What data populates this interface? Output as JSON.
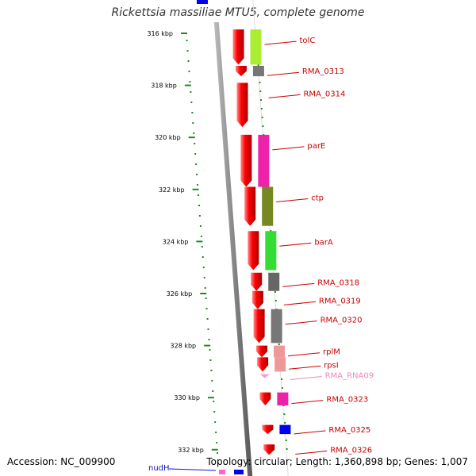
{
  "title": "Rickettsia massiliae MTU5, complete genome",
  "footer": {
    "accession": "Accession: NC_009900",
    "summary": "Topology: circular; Length: 1,360,898 bp; Genes: 1,007"
  },
  "colors": {
    "forward": "#ee0000",
    "backbone": "#888888",
    "tick": "#228822",
    "label": "#cc0000",
    "rna_label": "#ee88bb",
    "nudh_label": "#1111cc"
  },
  "ticks": [
    {
      "label": "316 kbp",
      "kbp": 316
    },
    {
      "label": "318 kbp",
      "kbp": 318
    },
    {
      "label": "320 kbp",
      "kbp": 320
    },
    {
      "label": "322 kbp",
      "kbp": 322
    },
    {
      "label": "324 kbp",
      "kbp": 324
    },
    {
      "label": "326 kbp",
      "kbp": 326
    },
    {
      "label": "328 kbp",
      "kbp": 328
    },
    {
      "label": "330 kbp",
      "kbp": 330
    },
    {
      "label": "332 kbp",
      "kbp": 332
    }
  ],
  "genes": [
    {
      "label": "tolC",
      "start_kbp": 315.85,
      "end_kbp": 317.2,
      "cog_color": "#aaee33"
    },
    {
      "label": "RMA_0313",
      "start_kbp": 317.25,
      "end_kbp": 317.65,
      "cog_color": "#777777"
    },
    {
      "label": "RMA_0314",
      "start_kbp": 317.9,
      "end_kbp": 319.6,
      "cog_color": ""
    },
    {
      "label": "parE",
      "start_kbp": 319.9,
      "end_kbp": 321.9,
      "cog_color": "#ee22aa"
    },
    {
      "label": "ctp",
      "start_kbp": 321.9,
      "end_kbp": 323.4,
      "cog_color": "#778822"
    },
    {
      "label": "barA",
      "start_kbp": 323.6,
      "end_kbp": 325.1,
      "cog_color": "#33dd33"
    },
    {
      "label": "RMA_0318",
      "start_kbp": 325.2,
      "end_kbp": 325.9,
      "cog_color": "#666666"
    },
    {
      "label": "RMA_0319",
      "start_kbp": 325.9,
      "end_kbp": 326.6,
      "cog_color": ""
    },
    {
      "label": "RMA_0320",
      "start_kbp": 326.6,
      "end_kbp": 327.9,
      "cog_color": "#777777"
    },
    {
      "label": "rplM",
      "start_kbp": 328.0,
      "end_kbp": 328.45,
      "cog_color": "#ee9999"
    },
    {
      "label": "rpsI",
      "start_kbp": 328.45,
      "end_kbp": 329.0,
      "cog_color": "#ee9999"
    },
    {
      "label": "RMA_RNA09",
      "start_kbp": 329.1,
      "end_kbp": 329.2,
      "cog_color": ""
    },
    {
      "label": "RMA_0323",
      "start_kbp": 329.8,
      "end_kbp": 330.3,
      "cog_color": "#ee22aa"
    },
    {
      "label": "RMA_0325",
      "start_kbp": 331.05,
      "end_kbp": 331.4,
      "cog_color": "#0000ee"
    },
    {
      "label": "RMA_0326",
      "start_kbp": 331.8,
      "end_kbp": 332.2,
      "cog_color": ""
    }
  ],
  "nudh_label": "nudH"
}
